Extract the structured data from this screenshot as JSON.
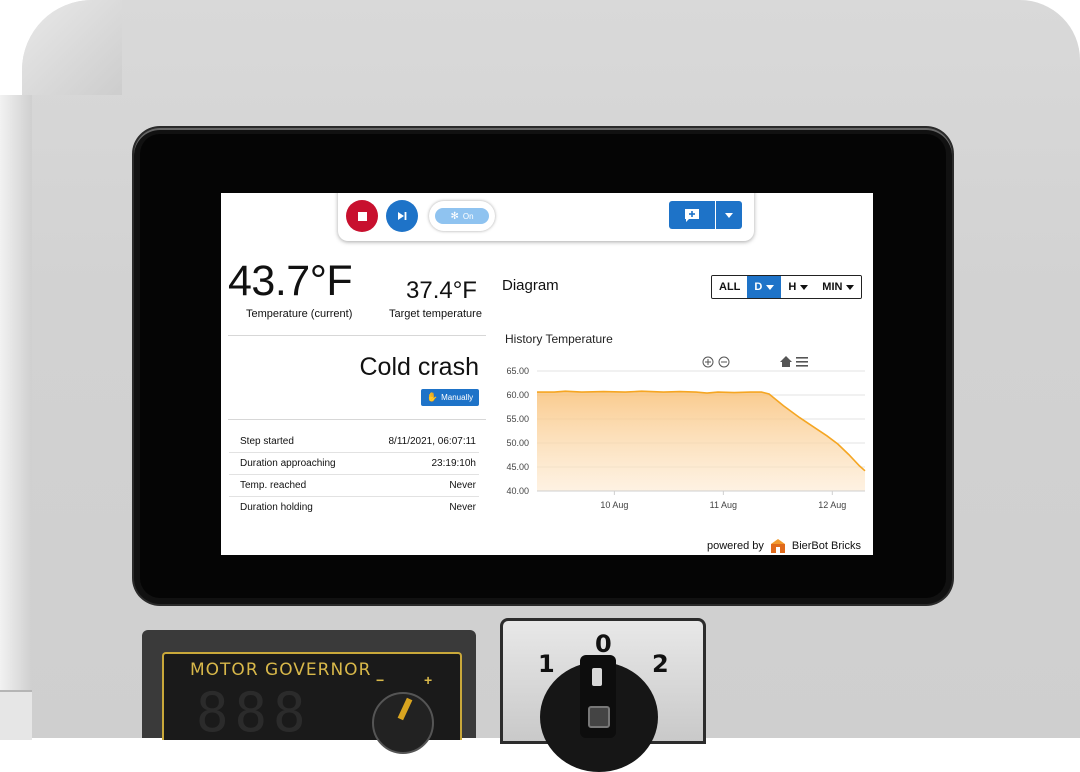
{
  "hardware": {
    "governor_title": "MOTOR GOVERNOR",
    "governor_display": "888",
    "switch_positions": [
      "1",
      "0",
      "2"
    ]
  },
  "toolbar": {
    "cooling_toggle_label": "On"
  },
  "status": {
    "current_temp": "43.7°F",
    "current_temp_label": "Temperature (current)",
    "target_temp": "37.4°F",
    "target_temp_label": "Target temperature",
    "step_name": "Cold crash",
    "mode_badge": "Manually"
  },
  "info_rows": [
    {
      "label": "Step started",
      "value": "8/11/2021, 06:07:11"
    },
    {
      "label": "Duration approaching",
      "value": "23:19:10h"
    },
    {
      "label": "Temp. reached",
      "value": "Never"
    },
    {
      "label": "Duration holding",
      "value": "Never"
    }
  ],
  "diagram": {
    "title": "Diagram",
    "ranges": [
      {
        "label": "ALL",
        "active": false,
        "dropdown": false
      },
      {
        "label": "D",
        "active": true,
        "dropdown": true
      },
      {
        "label": "H",
        "active": false,
        "dropdown": true
      },
      {
        "label": "MIN",
        "active": false,
        "dropdown": true
      }
    ]
  },
  "chart_data": {
    "type": "area",
    "title": "History Temperature",
    "xlabel": "",
    "ylabel": "",
    "ylim": [
      40,
      65
    ],
    "yticks": [
      "65.00",
      "60.00",
      "55.00",
      "50.00",
      "45.00",
      "40.00"
    ],
    "xticks": [
      {
        "label": "10 Aug",
        "x": 1
      },
      {
        "label": "11 Aug",
        "x": 2
      },
      {
        "label": "12 Aug",
        "x": 3
      }
    ],
    "xlim": [
      0.29,
      3.3
    ],
    "grid": true,
    "line_color": "#f5a623",
    "series": [
      {
        "x": [
          0.29,
          0.45,
          0.55,
          0.7,
          0.9,
          1.1,
          1.25,
          1.45,
          1.6,
          1.75,
          1.85,
          1.95,
          2.1,
          2.25,
          2.35,
          2.42,
          2.55,
          2.7,
          2.85,
          2.95,
          3.05,
          3.15,
          3.25,
          3.3
        ],
        "values": [
          60.6,
          60.6,
          60.8,
          60.6,
          60.7,
          60.6,
          60.8,
          60.6,
          60.7,
          60.6,
          60.4,
          60.6,
          60.5,
          60.6,
          60.6,
          60.2,
          57.8,
          55.3,
          53.0,
          51.5,
          49.8,
          47.6,
          45.2,
          44.2
        ]
      }
    ]
  },
  "footer": {
    "powered_by": "powered by",
    "brand": "BierBot Bricks"
  }
}
